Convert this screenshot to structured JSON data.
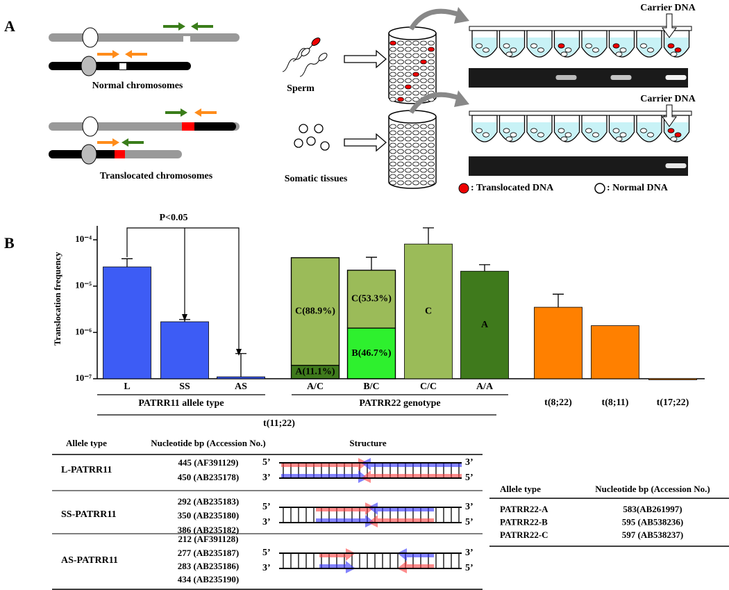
{
  "panel_labels": [
    "A",
    "B"
  ],
  "panel_a": {
    "normal": "Normal chromosomes",
    "translocated": "Translocated chromosomes",
    "sperm": "Sperm",
    "somatic": "Somatic tissues",
    "carrier": "Carrier DNA",
    "legend_translocated": ": Translocated DNA",
    "legend_normal": ": Normal DNA"
  },
  "chart_data": {
    "type": "bar",
    "y_label": "Translocation frequency",
    "log_scale": true,
    "ylim": [
      1e-07,
      0.0002
    ],
    "yticks": [
      {
        "value": 0.0001,
        "label": "10⁻⁴"
      },
      {
        "value": 1e-05,
        "label": "10⁻⁵"
      },
      {
        "value": 1e-06,
        "label": "10⁻⁶"
      },
      {
        "value": 1e-07,
        "label": "10⁻⁷"
      }
    ],
    "categories": [
      "L",
      "SS",
      "AS",
      "A/C",
      "B/C",
      "C/C",
      "A/A",
      "t(8;22)",
      "t(8;11)",
      "t(17;22)"
    ],
    "values": [
      2.6e-05,
      1.7e-06,
      1.1e-07,
      4.1e-05,
      2.2e-05,
      8.1e-05,
      2.1e-05,
      3.5e-06,
      1.4e-06,
      1e-07
    ],
    "errors": [
      1.3e-05,
      2e-07,
      2.4e-07,
      null,
      2e-05,
      0.0001,
      8e-06,
      3.2e-06,
      null,
      null
    ],
    "colors": [
      "#3d5cf5",
      "#3d5cf5",
      "#3d5cf5",
      "#9bbb59",
      "#9bbb59",
      "#9bbb59",
      "#3f7a1c",
      "#ff8000",
      "#ff8000",
      "#ff8000"
    ],
    "segments": [
      null,
      null,
      null,
      [
        {
          "label": "A(11.1%)",
          "value": 11.1,
          "color": "#3f7a1c"
        },
        {
          "label": "C(88.9%)",
          "value": 88.9,
          "color": "#9bbb59"
        }
      ],
      [
        {
          "label": "B(46.7%)",
          "value": 46.7,
          "color": "#2ef02e"
        },
        {
          "label": "C(53.3%)",
          "value": 53.3,
          "color": "#9bbb59"
        }
      ],
      null,
      null,
      null,
      null,
      null
    ],
    "bar_labels": [
      null,
      null,
      null,
      null,
      null,
      "C",
      "A",
      null,
      null,
      null
    ],
    "group_labels": [
      "PATRR11 allele type",
      "PATRR22 genotype",
      "t(11;22)"
    ],
    "annotation": "P<0.05",
    "grid": false
  },
  "table1": {
    "headers": [
      "Allele type",
      "Nucleotide bp (Accession No.)",
      "Structure"
    ],
    "strand_labels": [
      "5’",
      "3’"
    ],
    "rows": [
      {
        "allele": "L-PATRR11",
        "entries": [
          "445 (AF391129)",
          "450 (AB235178)"
        ]
      },
      {
        "allele": "SS-PATRR11",
        "entries": [
          "292 (AB235183)",
          "350 (AB235180)",
          "386 (AB235182)"
        ]
      },
      {
        "allele": "AS-PATRR11",
        "entries": [
          "212 (AF391128)",
          "277 (AB235187)",
          "283 (AB235186)",
          "434 (AB235190)"
        ]
      }
    ]
  },
  "table2": {
    "headers": [
      "Allele type",
      "Nucleotide bp (Accession No.)"
    ],
    "rows": [
      [
        "PATRR22-A",
        "583(AB261997)"
      ],
      [
        "PATRR22-B",
        "595 (AB538236)"
      ],
      [
        "PATRR22-C",
        "597 (AB538237)"
      ]
    ]
  }
}
